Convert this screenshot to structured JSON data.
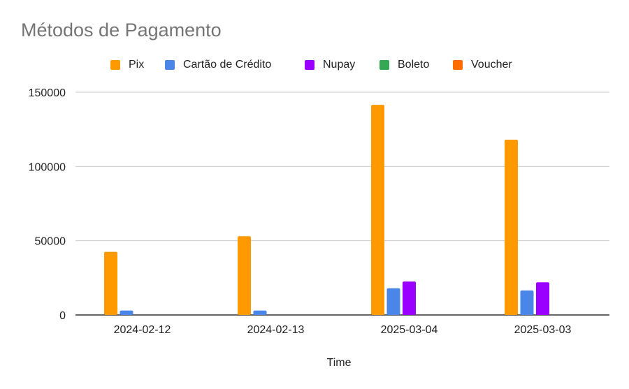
{
  "chart_data": {
    "type": "bar",
    "title": "Métodos de Pagamento",
    "xlabel": "Time",
    "ylabel": "",
    "categories": [
      "2024-02-12",
      "2024-02-13",
      "2025-03-04",
      "2025-03-03"
    ],
    "ylim": [
      0,
      150000
    ],
    "yticks": [
      "0",
      "50000",
      "100000",
      "150000"
    ],
    "grid": true,
    "legend_position": "top",
    "series": [
      {
        "name": "Pix",
        "color": "#ff9900",
        "values": [
          42500,
          53000,
          141500,
          118000
        ]
      },
      {
        "name": "Cartão de Crédito",
        "color": "#4a86e8",
        "values": [
          3000,
          3000,
          18000,
          16500
        ]
      },
      {
        "name": "Nupay",
        "color": "#9900ff",
        "values": [
          0,
          0,
          22500,
          22000
        ]
      },
      {
        "name": "Boleto",
        "color": "#34a853",
        "values": [
          0,
          0,
          0,
          0
        ]
      },
      {
        "name": "Voucher",
        "color": "#ff6d01",
        "values": [
          0,
          0,
          0,
          0
        ]
      }
    ]
  }
}
